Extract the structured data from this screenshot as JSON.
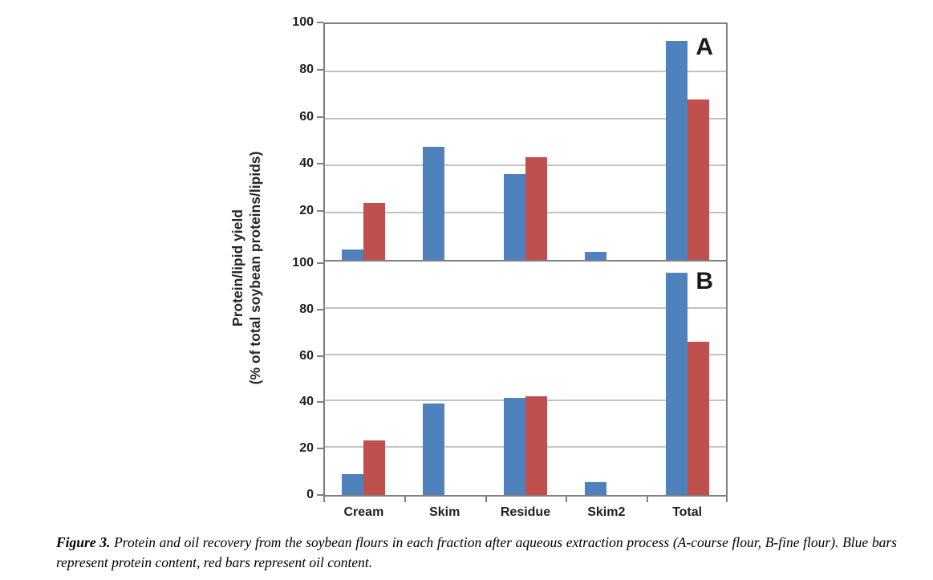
{
  "figure": {
    "y_axis_title_line1": "Protein/lipid yield",
    "y_axis_title_line2": "(% of total soybean proteins/lipids)",
    "caption_label": "Figure 3.",
    "caption_text": " Protein and oil recovery from the soybean flours in each fraction after aqueous extraction process (A-course flour, B-fine flour). Blue bars represent protein content, red bars represent oil content."
  },
  "colors": {
    "protein_bar": "#4f81bd",
    "oil_bar": "#c0504d",
    "gridline": "#c2c2c2",
    "axis_line": "#808080",
    "tick_label": "#1f1f1f"
  },
  "chart_data": [
    {
      "type": "bar",
      "panel_label": "A",
      "categories": [
        "Cream",
        "Skim",
        "Residue",
        "Skim2",
        "Total"
      ],
      "series": [
        {
          "name": "protein",
          "color": "#4f81bd",
          "values": [
            4.5,
            48,
            36.5,
            3.5,
            93
          ]
        },
        {
          "name": "oil",
          "color": "#c0504d",
          "values": [
            24,
            0,
            43.5,
            0,
            68
          ]
        }
      ],
      "ylim": [
        0,
        100
      ],
      "yticks": [
        100,
        80,
        60,
        40,
        20
      ],
      "grid": true,
      "legend": "none"
    },
    {
      "type": "bar",
      "panel_label": "B",
      "categories": [
        "Cream",
        "Skim",
        "Residue",
        "Skim2",
        "Total"
      ],
      "series": [
        {
          "name": "protein",
          "color": "#4f81bd",
          "values": [
            9,
            39.5,
            42,
            5.5,
            96
          ]
        },
        {
          "name": "oil",
          "color": "#c0504d",
          "values": [
            23.5,
            0,
            42.5,
            0,
            66
          ]
        }
      ],
      "ylim": [
        0,
        100
      ],
      "yticks": [
        100,
        80,
        60,
        40,
        20,
        0
      ],
      "grid": true,
      "legend": "none"
    }
  ]
}
